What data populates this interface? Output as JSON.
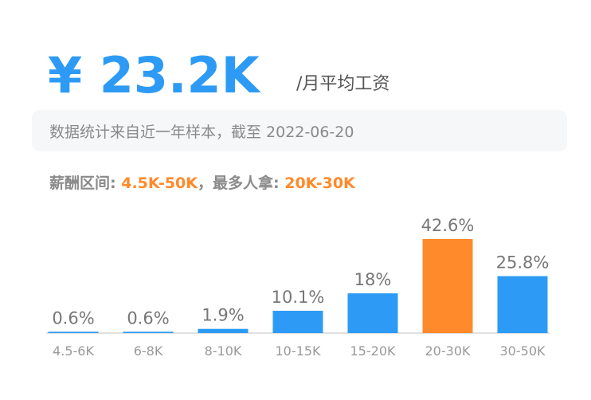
{
  "header": {
    "amount": "¥ 23.2K",
    "suffix": "/月平均工资"
  },
  "note": "数据统计来自近一年样本，截至 2022-06-20",
  "range_line": {
    "range_label": "薪酬区间: ",
    "range_value": "4.5K-50K",
    "mode_label": "，最多人拿: ",
    "mode_value": "20K-30K"
  },
  "chart_data": {
    "type": "bar",
    "categories": [
      "4.5-6K",
      "6-8K",
      "8-10K",
      "10-15K",
      "15-20K",
      "20-30K",
      "30-50K"
    ],
    "values": [
      0.6,
      0.6,
      1.9,
      10.1,
      18,
      42.6,
      25.8
    ],
    "value_labels": [
      "0.6%",
      "0.6%",
      "1.9%",
      "10.1%",
      "18%",
      "42.6%",
      "25.8%"
    ],
    "colors": [
      "#2d9bf5",
      "#2d9bf5",
      "#2d9bf5",
      "#2d9bf5",
      "#2d9bf5",
      "#ff8a2b",
      "#2d9bf5"
    ]
  }
}
